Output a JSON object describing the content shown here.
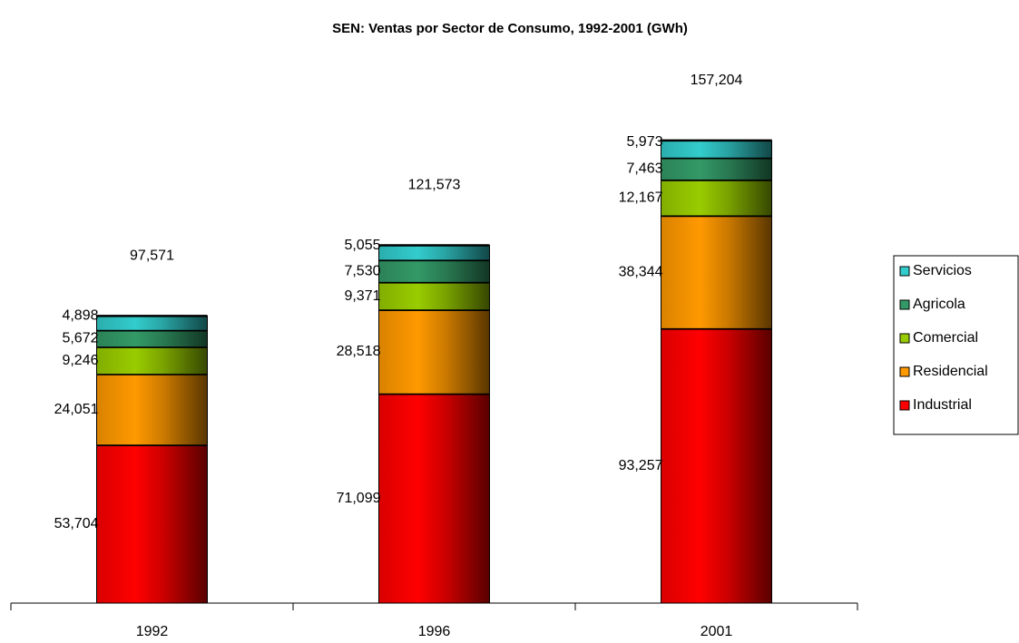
{
  "chart_data": {
    "type": "stacked_bar",
    "title": "SEN: Ventas por Sector de Consumo, 1992-2001 (GWh)",
    "categories": [
      "1992",
      "1996",
      "2001"
    ],
    "series": [
      {
        "name": "Industrial",
        "color": "#ff0000",
        "values": [
          53704,
          71099,
          93257
        ],
        "value_labels": [
          "53,704",
          "71,099",
          "93,257"
        ]
      },
      {
        "name": "Residencial",
        "color": "#ff9900",
        "values": [
          24051,
          28518,
          38344
        ],
        "value_labels": [
          "24,051",
          "28,518",
          "38,344"
        ]
      },
      {
        "name": "Comercial",
        "color": "#99cc00",
        "values": [
          9246,
          9371,
          12167
        ],
        "value_labels": [
          "9,246",
          "9,371",
          "12,167"
        ]
      },
      {
        "name": "Agricola",
        "color": "#339966",
        "values": [
          5672,
          7530,
          7463
        ],
        "value_labels": [
          "5,672",
          "7,530",
          "7,463"
        ]
      },
      {
        "name": "Servicios",
        "color": "#33cccc",
        "values": [
          4898,
          5055,
          5973
        ],
        "value_labels": [
          "4,898",
          "5,055",
          "5,973"
        ]
      }
    ],
    "totals": [
      97571,
      121573,
      157204
    ],
    "total_labels": [
      "97,571",
      "121,573",
      "157,204"
    ],
    "ylim": [
      0,
      200000
    ],
    "legend": "right"
  }
}
